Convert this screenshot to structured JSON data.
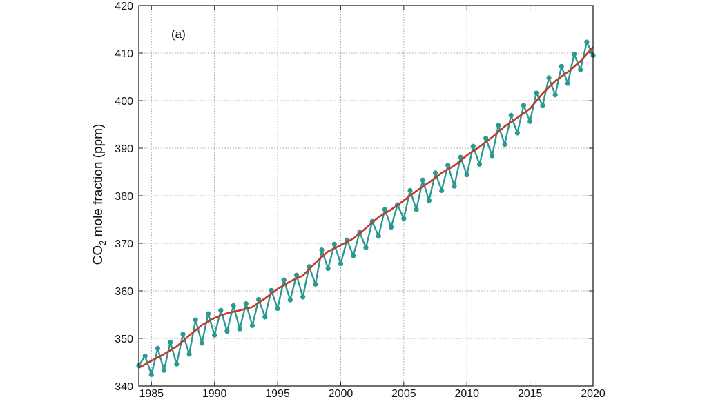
{
  "chart_data": {
    "type": "line",
    "panel_label": "(a)",
    "ylabel_main": "CO",
    "ylabel_sub": "2",
    "ylabel_rest": " mole fraction (ppm)",
    "xlabel": "",
    "xlim": [
      1984,
      2020
    ],
    "ylim": [
      340,
      420
    ],
    "x_ticks": [
      1985,
      1990,
      1995,
      2000,
      2005,
      2010,
      2015,
      2020
    ],
    "x_tick_labels": [
      "1985",
      "1990",
      "1995",
      "2000",
      "2005",
      "2010",
      "2015",
      "2020"
    ],
    "y_ticks": [
      340,
      350,
      360,
      370,
      380,
      390,
      400,
      410,
      420
    ],
    "y_tick_labels": [
      "340",
      "350",
      "360",
      "370",
      "380",
      "390",
      "400",
      "410",
      "420"
    ],
    "grid": true,
    "series": [
      {
        "style": "monthly",
        "color": "#2a9a90",
        "x": [
          1984.0,
          1984.5,
          1985.0,
          1985.5,
          1986.0,
          1986.5,
          1987.0,
          1987.5,
          1988.0,
          1988.5,
          1989.0,
          1989.5,
          1990.0,
          1990.5,
          1991.0,
          1991.5,
          1992.0,
          1992.5,
          1993.0,
          1993.5,
          1994.0,
          1994.5,
          1995.0,
          1995.5,
          1996.0,
          1996.5,
          1997.0,
          1997.5,
          1998.0,
          1998.5,
          1999.0,
          1999.5,
          2000.0,
          2000.5,
          2001.0,
          2001.5,
          2002.0,
          2002.5,
          2003.0,
          2003.5,
          2004.0,
          2004.5,
          2005.0,
          2005.5,
          2006.0,
          2006.5,
          2007.0,
          2007.5,
          2008.0,
          2008.5,
          2009.0,
          2009.5,
          2010.0,
          2010.5,
          2011.0,
          2011.5,
          2012.0,
          2012.5,
          2013.0,
          2013.5,
          2014.0,
          2014.5,
          2015.0,
          2015.5,
          2016.0,
          2016.5,
          2017.0,
          2017.5,
          2018.0,
          2018.5,
          2019.0,
          2019.5,
          2020.0
        ],
        "y": [
          344.3,
          346.3,
          342.4,
          347.9,
          343.3,
          349.2,
          344.6,
          350.9,
          346.7,
          353.9,
          349.0,
          355.2,
          350.7,
          355.9,
          351.5,
          356.9,
          352.0,
          357.3,
          352.7,
          358.2,
          354.5,
          360.1,
          356.3,
          362.3,
          358.1,
          363.3,
          358.7,
          365.1,
          361.4,
          368.6,
          364.7,
          369.8,
          365.7,
          370.7,
          367.4,
          372.3,
          369.1,
          374.6,
          371.5,
          377.1,
          373.4,
          378.1,
          375.2,
          381.1,
          377.1,
          383.3,
          379.0,
          384.8,
          381.1,
          386.4,
          382.0,
          388.1,
          384.4,
          390.4,
          386.6,
          392.1,
          388.4,
          394.8,
          390.8,
          396.9,
          393.2,
          399.0,
          395.6,
          401.6,
          399.0,
          404.8,
          401.2,
          407.2,
          403.6,
          409.8,
          406.5,
          412.3,
          409.5
        ]
      },
      {
        "style": "trend",
        "color": "#c0392b",
        "x": [
          1984,
          1985,
          1986,
          1987,
          1988,
          1989,
          1990,
          1991,
          1992,
          1993,
          1994,
          1995,
          1996,
          1997,
          1998,
          1999,
          2000,
          2001,
          2002,
          2003,
          2004,
          2005,
          2006,
          2007,
          2008,
          2009,
          2010,
          2011,
          2012,
          2013,
          2014,
          2015,
          2016,
          2017,
          2018,
          2019,
          2020
        ],
        "y": [
          343.8,
          345.3,
          346.7,
          348.3,
          350.6,
          352.8,
          354.3,
          355.3,
          355.9,
          356.6,
          358.4,
          360.4,
          362.0,
          363.2,
          365.9,
          368.3,
          369.6,
          371.0,
          373.2,
          375.5,
          377.1,
          379.0,
          381.0,
          382.8,
          384.8,
          386.3,
          388.5,
          390.3,
          392.3,
          394.6,
          396.4,
          398.3,
          401.5,
          404.1,
          406.0,
          408.3,
          411.3
        ]
      }
    ]
  }
}
